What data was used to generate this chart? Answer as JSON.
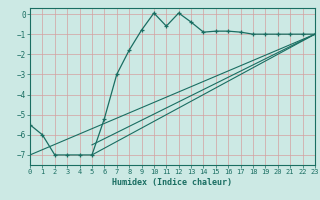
{
  "title": "",
  "xlabel": "Humidex (Indice chaleur)",
  "xlim": [
    0,
    23
  ],
  "ylim": [
    -7.5,
    0.3
  ],
  "xticks": [
    0,
    1,
    2,
    3,
    4,
    5,
    6,
    7,
    8,
    9,
    10,
    11,
    12,
    13,
    14,
    15,
    16,
    17,
    18,
    19,
    20,
    21,
    22,
    23
  ],
  "yticks": [
    0,
    -1,
    -2,
    -3,
    -4,
    -5,
    -6,
    -7
  ],
  "bg_color": "#cce9e4",
  "line_color": "#1a6e62",
  "grid_color": "#d4a0a0",
  "line1_x": [
    0,
    1,
    2,
    3,
    4,
    5,
    6,
    7,
    8,
    9,
    10,
    11,
    12,
    13,
    14,
    15,
    16,
    17,
    18,
    19,
    20,
    21,
    22,
    23
  ],
  "line1_y": [
    -5.5,
    -6.0,
    -7.0,
    -7.0,
    -7.0,
    -7.0,
    -5.2,
    -3.0,
    -1.8,
    -0.8,
    0.05,
    -0.6,
    0.05,
    -0.4,
    -0.9,
    -0.85,
    -0.85,
    -0.9,
    -1.0,
    -1.0,
    -1.0,
    -1.0,
    -1.0,
    -1.0
  ],
  "line2_x": [
    0,
    23
  ],
  "line2_y": [
    -7.0,
    -1.0
  ],
  "line3_x": [
    5,
    23
  ],
  "line3_y": [
    -7.0,
    -1.0
  ],
  "line4_x": [
    5,
    23
  ],
  "line4_y": [
    -6.5,
    -1.0
  ]
}
